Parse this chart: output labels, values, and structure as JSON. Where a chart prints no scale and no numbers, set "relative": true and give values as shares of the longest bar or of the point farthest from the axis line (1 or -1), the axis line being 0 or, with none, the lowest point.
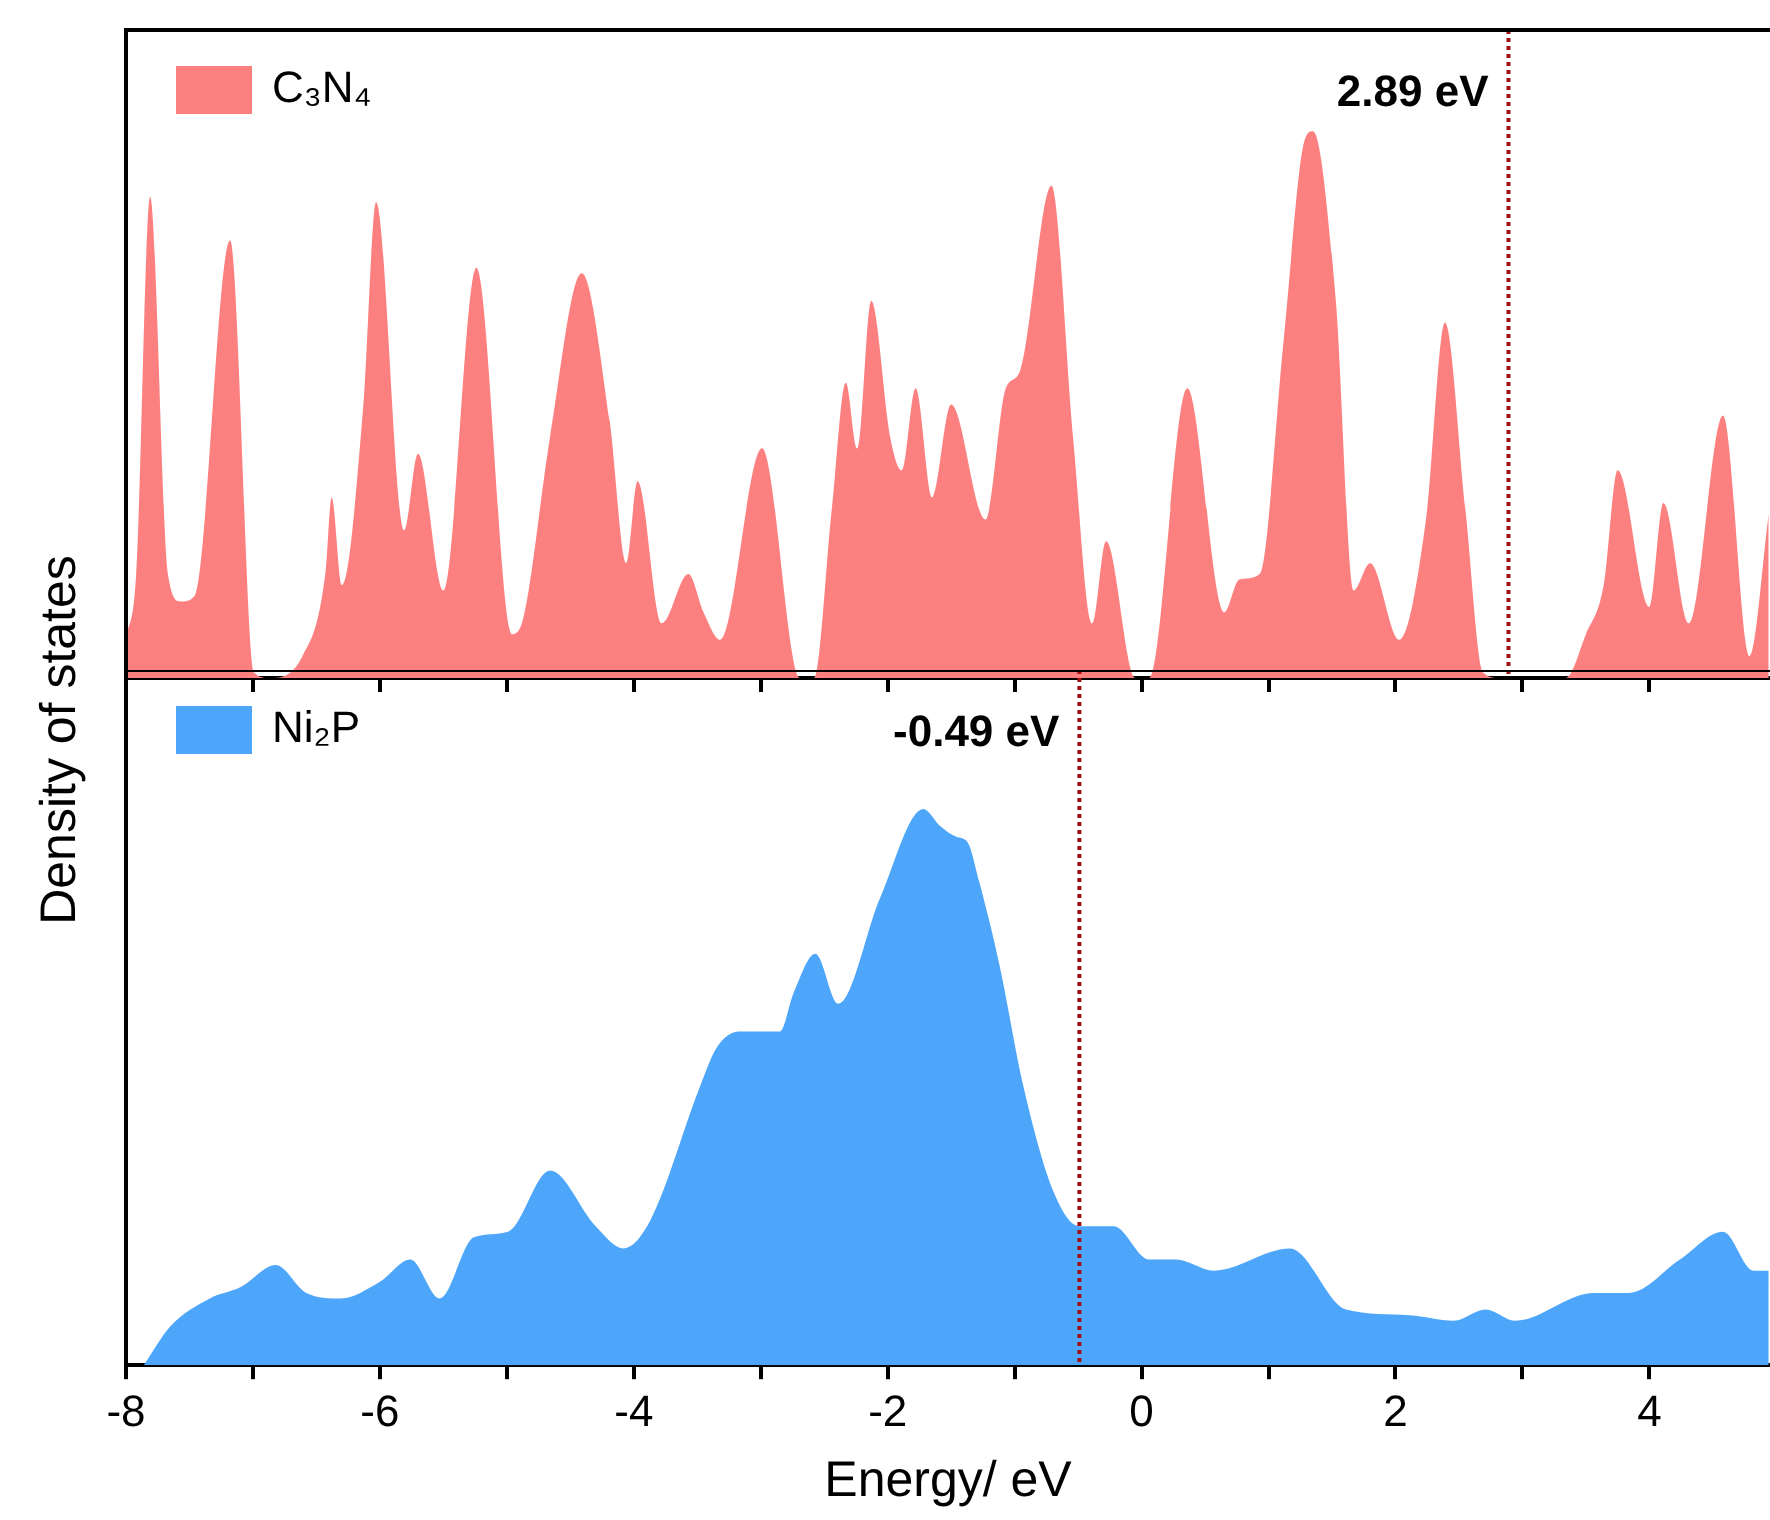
{
  "chart_data": [
    {
      "type": "area",
      "relative": true,
      "ylabel": "Density of states",
      "xlim": [
        -8,
        4.95
      ],
      "xticks": [
        -8,
        {
          "value": -7,
          "label": null
        },
        -6,
        {
          "value": -5,
          "label": null
        },
        -4,
        {
          "value": -3,
          "label": null
        },
        -2,
        {
          "value": -1,
          "label": null
        },
        0,
        {
          "value": 1,
          "label": null
        },
        2,
        {
          "value": 3,
          "label": null
        },
        4
      ],
      "tick_labels": false,
      "legend": "top left",
      "ref_lines": [
        {
          "axis": "x",
          "value": 2.89,
          "label": "2.89 eV",
          "color": "#a01010",
          "line_style": "dotted"
        }
      ],
      "series": [
        {
          "name": "C₃N₄",
          "color": "#fd8080",
          "x": [
            -8.0,
            -7.92,
            -7.81,
            -7.67,
            -7.57,
            -7.46,
            -7.18,
            -6.99,
            -6.87,
            -6.61,
            -6.43,
            -6.38,
            -6.3,
            -6.13,
            -6.03,
            -5.81,
            -5.7,
            -5.5,
            -5.24,
            -4.96,
            -4.87,
            -4.66,
            -4.41,
            -4.19,
            -4.06,
            -3.97,
            -3.78,
            -3.57,
            -3.45,
            -3.32,
            -2.99,
            -2.69,
            -2.58,
            -2.44,
            -2.33,
            -2.24,
            -2.13,
            -1.98,
            -1.89,
            -1.78,
            -1.65,
            -1.5,
            -1.23,
            -1.07,
            -0.96,
            -0.71,
            -0.54,
            -0.39,
            -0.28,
            -0.05,
            0.06,
            0.36,
            0.65,
            0.77,
            0.93,
            1.12,
            1.28,
            1.35,
            1.53,
            1.67,
            1.8,
            2.03,
            2.24,
            2.39,
            2.55,
            2.69,
            2.82,
            3.34,
            3.5,
            3.64,
            3.75,
            4.0,
            4.11,
            4.31,
            4.58,
            4.79,
            4.94
          ],
          "values": [
            0.07,
            0.19,
            0.88,
            0.19,
            0.14,
            0.15,
            0.8,
            0.01,
            0,
            0.04,
            0.19,
            0.33,
            0.17,
            0.5,
            0.87,
            0.27,
            0.41,
            0.16,
            0.75,
            0.08,
            0.11,
            0.44,
            0.74,
            0.47,
            0.21,
            0.36,
            0.1,
            0.19,
            0.12,
            0.07,
            0.42,
            0,
            0,
            0.31,
            0.54,
            0.42,
            0.69,
            0.44,
            0.38,
            0.53,
            0.33,
            0.5,
            0.29,
            0.53,
            0.56,
            0.9,
            0.44,
            0.1,
            0.25,
            0,
            0,
            0.53,
            0.12,
            0.18,
            0.19,
            0.62,
            0.98,
            1,
            0.69,
            0.16,
            0.21,
            0.07,
            0.29,
            0.65,
            0.31,
            0.01,
            0,
            0,
            0.08,
            0.17,
            0.38,
            0.13,
            0.32,
            0.1,
            0.48,
            0.04,
            0.3
          ]
        }
      ]
    },
    {
      "type": "area",
      "relative": true,
      "xlabel": "Energy/ eV",
      "xlim": [
        -8,
        4.95
      ],
      "xticks": [
        -8,
        {
          "value": -7,
          "label": null
        },
        -6,
        {
          "value": -5,
          "label": null
        },
        -4,
        {
          "value": -3,
          "label": null
        },
        -2,
        {
          "value": -1,
          "label": null
        },
        0,
        {
          "value": 1,
          "label": null
        },
        2,
        {
          "value": 3,
          "label": null
        },
        4
      ],
      "tick_labels": "x",
      "legend": "top left",
      "ref_lines": [
        {
          "axis": "x",
          "value": -0.49,
          "label": "-0.49 eV",
          "color": "#a01010",
          "line_style": "dotted"
        }
      ],
      "series": [
        {
          "name": "Ni₂P",
          "color": "#4da6fa",
          "x": [
            -7.86,
            -7.65,
            -7.34,
            -7.1,
            -6.82,
            -6.58,
            -6.31,
            -6.0,
            -5.76,
            -5.53,
            -5.26,
            -4.99,
            -4.66,
            -4.3,
            -4.08,
            -3.87,
            -3.48,
            -3.35,
            -3.17,
            -2.85,
            -2.74,
            -2.57,
            -2.39,
            -2.06,
            -1.72,
            -1.59,
            -1.46,
            -1.37,
            -1.28,
            -1.12,
            -0.93,
            -0.69,
            -0.49,
            -0.22,
            0.06,
            0.27,
            0.57,
            1.17,
            1.61,
            2.11,
            2.46,
            2.71,
            2.94,
            3.56,
            3.84,
            4.24,
            4.58,
            4.82,
            4.94
          ],
          "values": [
            0,
            0.07,
            0.12,
            0.14,
            0.18,
            0.13,
            0.12,
            0.15,
            0.19,
            0.12,
            0.23,
            0.24,
            0.35,
            0.25,
            0.21,
            0.26,
            0.5,
            0.57,
            0.6,
            0.6,
            0.67,
            0.74,
            0.65,
            0.84,
            1,
            0.97,
            0.95,
            0.94,
            0.87,
            0.72,
            0.5,
            0.31,
            0.25,
            0.25,
            0.19,
            0.19,
            0.17,
            0.21,
            0.1,
            0.09,
            0.08,
            0.1,
            0.08,
            0.13,
            0.13,
            0.19,
            0.24,
            0.17,
            0.17
          ]
        }
      ]
    }
  ]
}
